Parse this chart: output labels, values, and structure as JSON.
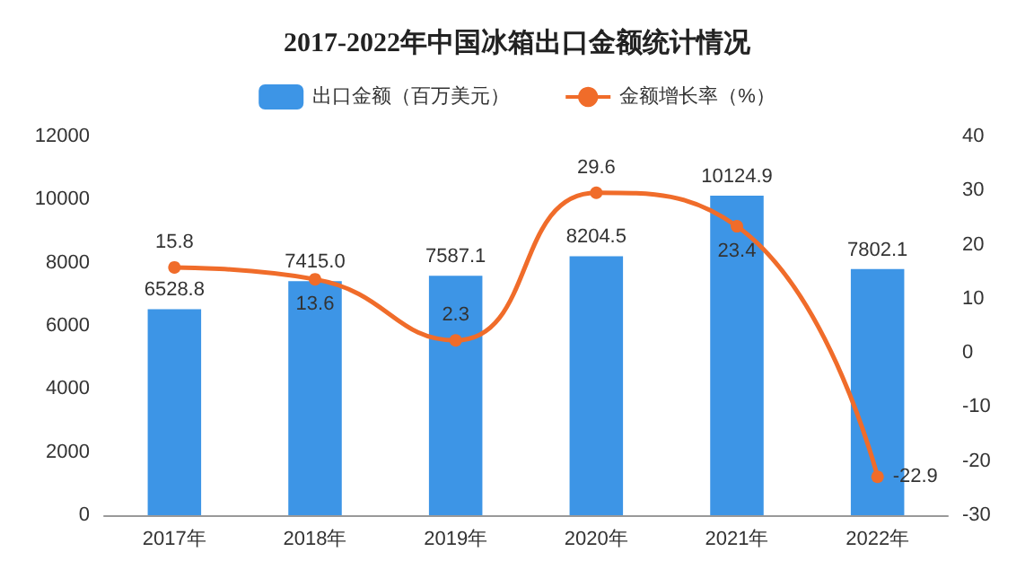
{
  "chart_data": {
    "type": "bar",
    "title": "2017-2022年中国冰箱出口金额统计情况",
    "categories": [
      "2017年",
      "2018年",
      "2019年",
      "2020年",
      "2021年",
      "2022年"
    ],
    "series": [
      {
        "name": "出口金额（百万美元）",
        "color": "#3d95e6",
        "values": [
          6528.8,
          7415.0,
          7587.1,
          8204.5,
          10124.9,
          7802.1
        ],
        "value_labels": [
          "6528.8",
          "7415.0",
          "7587.1",
          "8204.5",
          "10124.9",
          "7802.1"
        ]
      },
      {
        "name": "金额增长率（%）",
        "type": "line",
        "axis": "y2",
        "color": "#f06c2a",
        "values": [
          15.8,
          13.6,
          2.3,
          29.6,
          23.4,
          -22.9
        ],
        "value_labels": [
          "15.8",
          "13.6",
          "2.3",
          "29.6",
          "23.4",
          "-22.9"
        ]
      }
    ],
    "ylim": [
      0,
      12000
    ],
    "yticks": [
      0,
      2000,
      4000,
      6000,
      8000,
      10000,
      12000
    ],
    "y2lim": [
      -30,
      40
    ],
    "y2ticks": [
      -30,
      -20,
      -10,
      0,
      10,
      20,
      30,
      40
    ],
    "grid": false,
    "legend": "top",
    "marker": "circle",
    "line_style": "solid"
  }
}
